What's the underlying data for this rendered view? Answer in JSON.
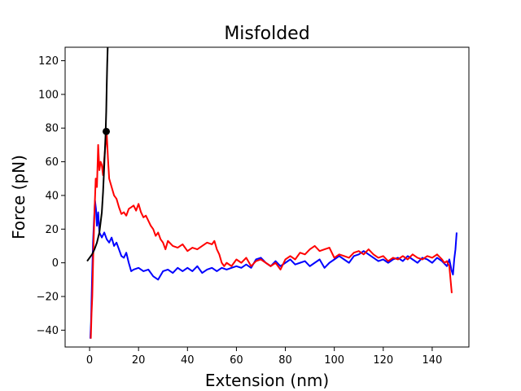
{
  "chart_data": {
    "type": "line",
    "title": "Misfolded",
    "xlabel": "Extension (nm)",
    "ylabel": "Force (pN)",
    "xlim": [
      -10,
      155
    ],
    "ylim": [
      -50,
      128
    ],
    "xticks": [
      0,
      20,
      40,
      60,
      80,
      100,
      120,
      140
    ],
    "yticks": [
      -40,
      -20,
      0,
      20,
      40,
      60,
      80,
      100,
      120
    ],
    "grid": false,
    "series": [
      {
        "color": "#0000ff",
        "x": [
          0.3,
          0.6,
          1.0,
          1.4,
          1.8,
          2.2,
          2.6,
          3.0,
          3.5,
          4.0,
          5.0,
          6.0,
          7.0,
          8.0,
          9.0,
          10.0,
          11.0,
          12.0,
          13.0,
          14.0,
          15.0,
          16.0,
          17.0,
          18.0,
          20.0,
          22.0,
          24.0,
          26.0,
          28.0,
          30.0,
          32.0,
          34.0,
          36.0,
          38.0,
          40.0,
          42.0,
          44.0,
          46.0,
          48.0,
          50.0,
          52.0,
          54.0,
          56.0,
          58.0,
          60.0,
          62.0,
          64.0,
          66.0,
          68.0,
          70.0,
          72.0,
          74.0,
          76.0,
          78.0,
          80.0,
          82.0,
          84.0,
          86.0,
          88.0,
          90.0,
          92.0,
          94.0,
          96.0,
          98.0,
          100.0,
          102.0,
          104.0,
          106.0,
          108.0,
          110.0,
          112.0,
          114.0,
          116.0,
          118.0,
          120.0,
          122.0,
          124.0,
          126.0,
          128.0,
          130.0,
          132.0,
          134.0,
          136.0,
          138.0,
          140.0,
          142.0,
          144.0,
          146.0,
          147.0,
          148.0,
          148.5,
          149.0,
          149.5,
          150.0
        ],
        "y": [
          -45.0,
          -35.0,
          -10.0,
          12.0,
          25.0,
          37.0,
          32.0,
          22.0,
          30.0,
          18.0,
          15.0,
          18.0,
          14.0,
          12.0,
          15.0,
          10.0,
          12.0,
          8.0,
          4.0,
          3.0,
          6.0,
          0.0,
          -5.0,
          -4.0,
          -3.0,
          -5.0,
          -4.0,
          -8.0,
          -10.0,
          -5.0,
          -4.0,
          -6.0,
          -3.0,
          -5.0,
          -3.0,
          -5.0,
          -2.0,
          -6.0,
          -4.0,
          -3.0,
          -5.0,
          -3.0,
          -4.0,
          -3.0,
          -2.0,
          -3.0,
          -1.0,
          -3.0,
          2.0,
          3.0,
          0.0,
          -2.0,
          1.0,
          -2.0,
          0.0,
          2.0,
          -1.0,
          0.0,
          1.0,
          -2.0,
          0.0,
          2.0,
          -3.0,
          0.0,
          2.0,
          4.0,
          2.0,
          0.0,
          4.0,
          5.0,
          7.0,
          5.0,
          3.0,
          1.0,
          2.0,
          0.0,
          2.0,
          3.0,
          1.0,
          4.0,
          2.0,
          0.0,
          3.0,
          2.0,
          0.0,
          3.0,
          1.0,
          -2.0,
          2.0,
          -5.0,
          -7.0,
          2.0,
          8.0,
          18.0
        ]
      },
      {
        "color": "#ff0000",
        "x": [
          0.5,
          0.8,
          1.1,
          1.5,
          2.0,
          2.5,
          3.0,
          3.5,
          4.0,
          4.5,
          5.0,
          5.5,
          6.0,
          6.5,
          7.0,
          7.5,
          8.0,
          9.0,
          10.0,
          11.0,
          12.0,
          13.0,
          14.0,
          15.0,
          16.0,
          17.0,
          18.0,
          19.0,
          20.0,
          21.0,
          22.0,
          23.0,
          24.0,
          25.0,
          26.0,
          27.0,
          28.0,
          29.0,
          30.0,
          31.0,
          32.0,
          34.0,
          36.0,
          38.0,
          40.0,
          42.0,
          44.0,
          46.0,
          48.0,
          50.0,
          51.0,
          52.0,
          53.0,
          54.0,
          55.0,
          56.0,
          58.0,
          60.0,
          62.0,
          64.0,
          66.0,
          68.0,
          70.0,
          72.0,
          74.0,
          76.0,
          78.0,
          80.0,
          82.0,
          84.0,
          86.0,
          88.0,
          90.0,
          92.0,
          94.0,
          96.0,
          98.0,
          100.0,
          102.0,
          104.0,
          106.0,
          108.0,
          110.0,
          112.0,
          114.0,
          116.0,
          118.0,
          120.0,
          122.0,
          124.0,
          126.0,
          128.0,
          130.0,
          132.0,
          134.0,
          136.0,
          138.0,
          140.0,
          142.0,
          144.0,
          145.0,
          146.0,
          147.0,
          147.5,
          148.0
        ],
        "y": [
          -45.0,
          -30.0,
          -20.0,
          5.0,
          30.0,
          50.0,
          45.0,
          70.0,
          55.0,
          60.0,
          58.0,
          52.0,
          62.0,
          70.0,
          77.0,
          62.0,
          50.0,
          45.0,
          40.0,
          38.0,
          33.0,
          29.0,
          30.0,
          28.0,
          32.0,
          33.0,
          34.0,
          31.0,
          35.0,
          30.0,
          27.0,
          28.0,
          25.0,
          22.0,
          20.0,
          16.0,
          18.0,
          14.0,
          12.0,
          8.0,
          13.0,
          10.0,
          9.0,
          11.0,
          7.0,
          9.0,
          8.0,
          10.0,
          12.0,
          11.0,
          13.0,
          8.0,
          5.0,
          0.0,
          -2.0,
          0.0,
          -2.0,
          2.0,
          0.0,
          3.0,
          -2.0,
          1.0,
          2.0,
          0.0,
          -2.0,
          0.0,
          -4.0,
          2.0,
          4.0,
          2.0,
          6.0,
          5.0,
          8.0,
          10.0,
          7.0,
          8.0,
          9.0,
          3.0,
          5.0,
          4.0,
          3.0,
          6.0,
          7.0,
          5.0,
          8.0,
          5.0,
          3.0,
          4.0,
          1.0,
          3.0,
          2.0,
          4.0,
          2.0,
          5.0,
          3.0,
          2.0,
          4.0,
          3.0,
          5.0,
          2.0,
          0.0,
          1.0,
          -2.0,
          -10.0,
          -18.0
        ]
      },
      {
        "color": "#000000",
        "x": [
          -1.0,
          0.0,
          1.0,
          2.0,
          3.0,
          4.0,
          5.0,
          5.5,
          6.0,
          6.5,
          6.8,
          7.0,
          7.2,
          7.4
        ],
        "y": [
          1.0,
          3.0,
          5.0,
          8.0,
          12.0,
          18.0,
          30.0,
          42.0,
          58.0,
          75.0,
          90.0,
          105.0,
          118.0,
          128.0
        ]
      }
    ],
    "marker": {
      "x": 6.8,
      "y": 78,
      "color": "#000000"
    }
  }
}
